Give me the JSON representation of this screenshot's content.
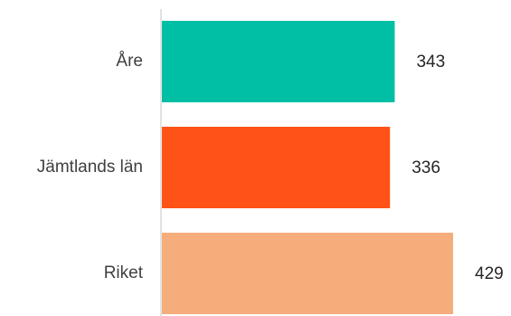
{
  "chart_data": {
    "type": "bar",
    "orientation": "horizontal",
    "categories": [
      "Åre",
      "Jämtlands län",
      "Riket"
    ],
    "values": [
      343,
      336,
      429
    ],
    "value_labels": [
      "343",
      "336",
      "429"
    ],
    "colors": [
      "#00bfa5",
      "#ff5216",
      "#f5ad7c"
    ],
    "axis_color": "#d9d9d9",
    "xlim": [
      0,
      429
    ],
    "grid": false,
    "legend": "none"
  }
}
